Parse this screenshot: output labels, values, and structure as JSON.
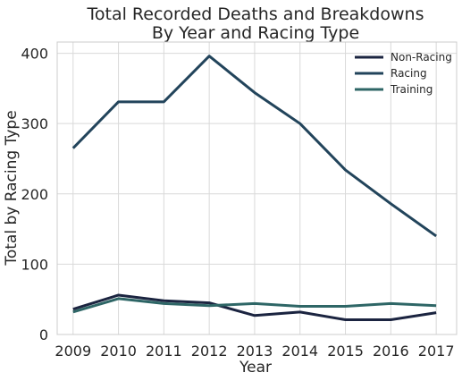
{
  "chart_data": {
    "type": "line",
    "title_lines": [
      "Total Recorded Deaths and Breakdowns",
      "By Year and Racing Type"
    ],
    "xlabel": "Year",
    "ylabel": "Total by Racing Type",
    "x": [
      2009,
      2010,
      2011,
      2012,
      2013,
      2014,
      2015,
      2016,
      2017
    ],
    "xlim": [
      2008.65,
      2017.45
    ],
    "ylim": [
      0,
      416
    ],
    "yticks": [
      0,
      100,
      200,
      300,
      400
    ],
    "grid": true,
    "legend_position": "top-right",
    "series": [
      {
        "name": "Non-Racing",
        "color": "#1b2440",
        "values": [
          36,
          56,
          48,
          45,
          27,
          32,
          21,
          21,
          31
        ]
      },
      {
        "name": "Racing",
        "color": "#22445b",
        "values": [
          265,
          331,
          331,
          396,
          344,
          300,
          234,
          186,
          140
        ]
      },
      {
        "name": "Training",
        "color": "#2e6666",
        "values": [
          32,
          51,
          44,
          41,
          44,
          40,
          40,
          44,
          41
        ]
      }
    ]
  }
}
